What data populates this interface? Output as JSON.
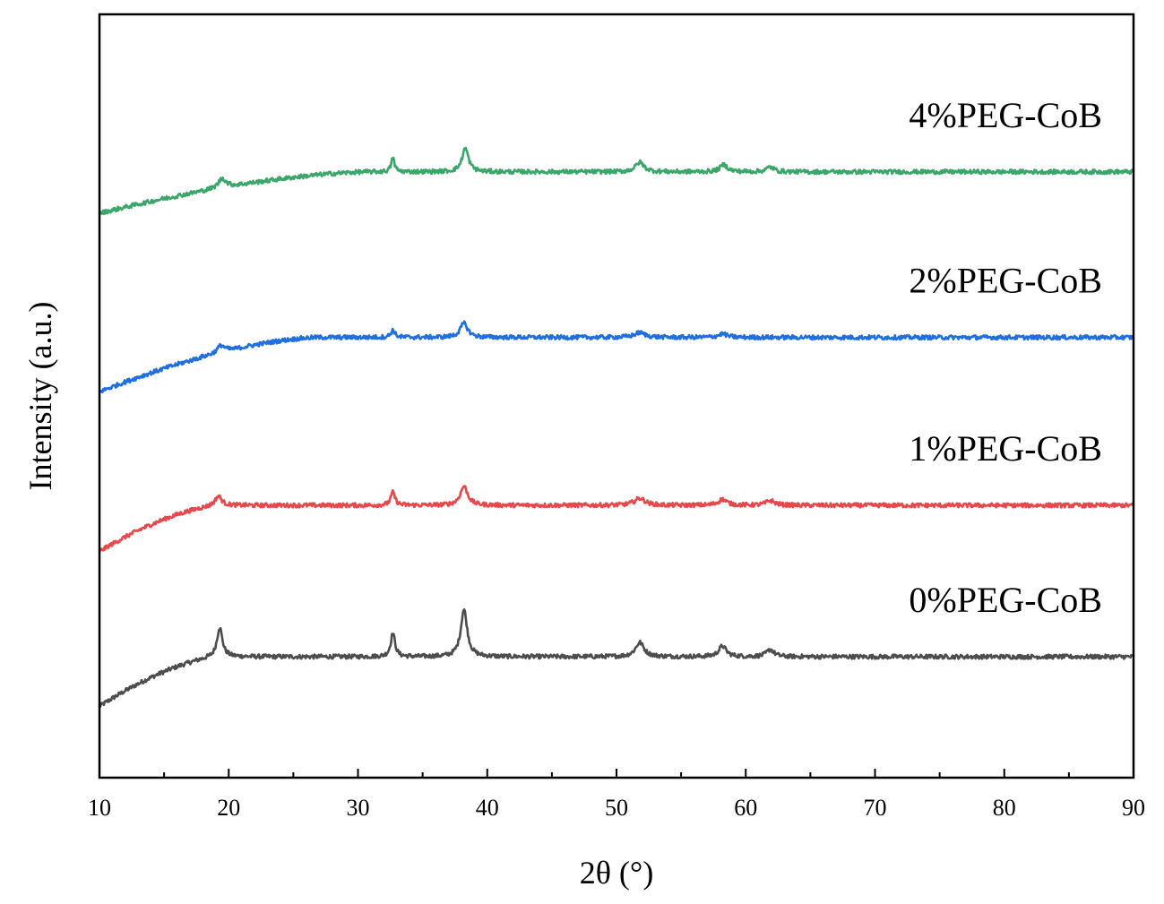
{
  "chart_data": {
    "type": "line",
    "xlabel": "2θ (°)",
    "ylabel": "Intensity (a.u.)",
    "xlim": [
      10,
      90
    ],
    "x_ticks": [
      "10",
      "20",
      "30",
      "40",
      "50",
      "60",
      "70",
      "80",
      "90"
    ],
    "y_ticks_shown": false,
    "grid": false,
    "legend": "labels above each trace, right side",
    "series": [
      {
        "name": "0%PEG-CoB",
        "color": "#4d4d4d",
        "offset": 0.0,
        "ramp_start": -0.21,
        "ramp_end_x": 19.5,
        "baseline": 0.0,
        "peaks": [
          {
            "x": 19.3,
            "height": 0.125,
            "width": 0.25
          },
          {
            "x": 32.7,
            "height": 0.1,
            "width": 0.2
          },
          {
            "x": 38.2,
            "height": 0.2,
            "width": 0.3
          },
          {
            "x": 51.8,
            "height": 0.06,
            "width": 0.4
          },
          {
            "x": 58.2,
            "height": 0.045,
            "width": 0.35
          },
          {
            "x": 61.9,
            "height": 0.03,
            "width": 0.35
          }
        ]
      },
      {
        "name": "1%PEG-CoB",
        "color": "#e8474b",
        "offset": 0.7,
        "ramp_start": -0.255,
        "ramp_end_x": 19.5,
        "baseline": -0.06,
        "peaks": [
          {
            "x": 19.2,
            "height": 0.04,
            "width": 0.3
          },
          {
            "x": 32.7,
            "height": 0.055,
            "width": 0.2
          },
          {
            "x": 38.2,
            "height": 0.08,
            "width": 0.35
          },
          {
            "x": 51.8,
            "height": 0.03,
            "width": 0.5
          },
          {
            "x": 58.2,
            "height": 0.025,
            "width": 0.4
          },
          {
            "x": 61.9,
            "height": 0.02,
            "width": 0.4
          }
        ]
      },
      {
        "name": "2%PEG-CoB",
        "color": "#1f6fe0",
        "offset": 1.4,
        "ramp_start": -0.28,
        "ramp_end_x": 27.0,
        "baseline": -0.05,
        "peaks": [
          {
            "x": 19.4,
            "height": 0.03,
            "width": 0.35
          },
          {
            "x": 32.7,
            "height": 0.03,
            "width": 0.2
          },
          {
            "x": 38.2,
            "height": 0.06,
            "width": 0.35
          },
          {
            "x": 51.8,
            "height": 0.02,
            "width": 0.5
          },
          {
            "x": 58.2,
            "height": 0.015,
            "width": 0.4
          }
        ]
      },
      {
        "name": "4%PEG-CoB",
        "color": "#3aa66a",
        "offset": 2.1,
        "ramp_start": -0.225,
        "ramp_end_x": 31.0,
        "baseline": -0.05,
        "peaks": [
          {
            "x": 19.5,
            "height": 0.04,
            "width": 0.35
          },
          {
            "x": 32.7,
            "height": 0.06,
            "width": 0.15
          },
          {
            "x": 38.3,
            "height": 0.1,
            "width": 0.3
          },
          {
            "x": 51.8,
            "height": 0.04,
            "width": 0.4
          },
          {
            "x": 58.3,
            "height": 0.03,
            "width": 0.35
          },
          {
            "x": 61.9,
            "height": 0.02,
            "width": 0.35
          }
        ]
      }
    ]
  }
}
